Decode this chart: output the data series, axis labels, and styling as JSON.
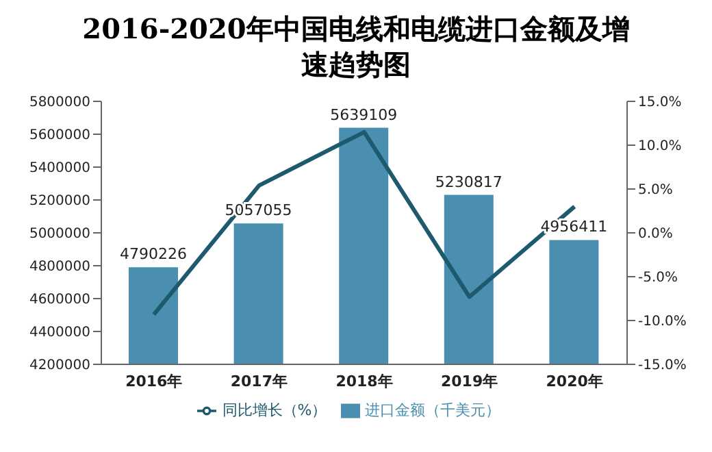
{
  "chart_data": {
    "type": "bar",
    "title": "2016-2020年中国电线和电缆进口金额及增速趋势图",
    "categories": [
      "2016年",
      "2017年",
      "2018年",
      "2019年",
      "2020年"
    ],
    "series": [
      {
        "name": "进口金额（千美元）",
        "color": "#4a8fb0",
        "values": [
          4790226,
          5057055,
          5639109,
          5230817,
          4956411
        ],
        "value_labels": [
          "4790226",
          "5057055",
          "5639109",
          "5230817",
          "4956411"
        ]
      },
      {
        "name": "同比增长（%）",
        "type": "line",
        "axis": "y2",
        "color": "#1d5a6e",
        "values": [
          -9.3,
          5.4,
          11.5,
          -7.3,
          3.0
        ]
      }
    ],
    "ylim": [
      4200000,
      5800000
    ],
    "yticks": [
      4200000,
      4400000,
      4600000,
      4800000,
      5000000,
      5200000,
      5400000,
      5600000,
      5800000
    ],
    "y2lim": [
      -15,
      15
    ],
    "y2ticks": [
      {
        "value": -15,
        "label": "-15.0%"
      },
      {
        "value": -10,
        "label": "-10.0%"
      },
      {
        "value": -5,
        "label": "-5.0%"
      },
      {
        "value": 0,
        "label": "0.0%"
      },
      {
        "value": 5,
        "label": "5.0%"
      },
      {
        "value": 10,
        "label": "10.0%"
      },
      {
        "value": 15,
        "label": "15.0%"
      }
    ],
    "grid": false,
    "legend": "bottom",
    "marker": "none"
  }
}
